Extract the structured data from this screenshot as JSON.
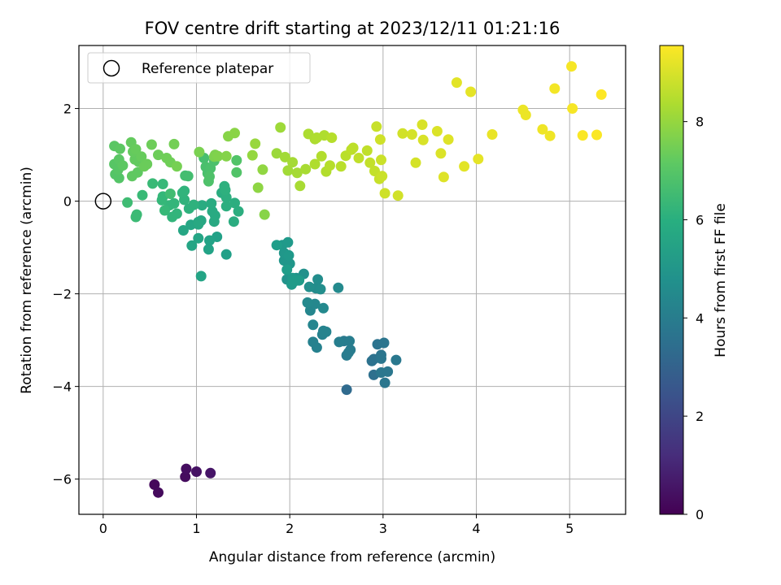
{
  "chart_data": {
    "type": "scatter",
    "title": "FOV centre drift starting at 2023/12/11 01:21:16",
    "xlabel": "Angular distance from reference (arcmin)",
    "ylabel": "Rotation from reference (arcmin)",
    "xlim": [
      -0.26,
      5.6
    ],
    "ylim": [
      -6.76,
      3.36
    ],
    "xticks": [
      0,
      1,
      2,
      3,
      4,
      5
    ],
    "xtick_labels": [
      "0",
      "1",
      "2",
      "3",
      "4",
      "5"
    ],
    "yticks": [
      -6,
      -4,
      -2,
      0,
      2
    ],
    "ytick_labels": [
      "−6",
      "−4",
      "−2",
      "0",
      "2"
    ],
    "grid": true,
    "legend": {
      "placement": "top-left",
      "entries": [
        "Reference platepar"
      ]
    },
    "reference_point": {
      "x": 0,
      "y": 0,
      "marker": "open-circle"
    },
    "colorbar": {
      "label": "Hours from first FF file",
      "colormap": "viridis",
      "range": [
        0,
        9.55
      ],
      "ticks": [
        0,
        2,
        4,
        6,
        8
      ],
      "tick_labels": [
        "0",
        "2",
        "4",
        "6",
        "8"
      ]
    },
    "series": [
      {
        "points": [
          [
            0.55,
            -6.12,
            0.2
          ],
          [
            0.59,
            -6.29,
            0.25
          ],
          [
            0.88,
            -5.95,
            0.3
          ],
          [
            0.89,
            -5.78,
            0.35
          ],
          [
            1.0,
            -5.84,
            0.45
          ],
          [
            1.15,
            -5.87,
            0.55
          ],
          [
            2.61,
            -4.07,
            3.3
          ],
          [
            2.9,
            -3.75,
            3.5
          ],
          [
            2.88,
            -3.45,
            3.6
          ],
          [
            2.9,
            -3.41,
            3.6
          ],
          [
            2.94,
            -3.09,
            3.65
          ],
          [
            3.01,
            -3.06,
            3.7
          ],
          [
            2.98,
            -3.32,
            3.7
          ],
          [
            2.98,
            -3.4,
            3.75
          ],
          [
            3.02,
            -3.92,
            3.75
          ],
          [
            2.98,
            -3.7,
            3.8
          ],
          [
            3.05,
            -3.68,
            3.8
          ],
          [
            3.14,
            -3.43,
            3.85
          ],
          [
            2.58,
            -3.02,
            3.9
          ],
          [
            2.61,
            -3.33,
            3.95
          ],
          [
            2.63,
            -3.27,
            4.0
          ],
          [
            2.65,
            -3.21,
            4.0
          ],
          [
            2.64,
            -3.02,
            4.05
          ],
          [
            2.53,
            -3.04,
            4.1
          ],
          [
            2.25,
            -3.04,
            4.2
          ],
          [
            2.29,
            -3.16,
            4.2
          ],
          [
            2.35,
            -2.88,
            4.25
          ],
          [
            2.39,
            -2.82,
            4.3
          ],
          [
            2.36,
            -2.8,
            4.3
          ],
          [
            2.25,
            -2.67,
            4.35
          ],
          [
            2.22,
            -2.36,
            4.4
          ],
          [
            2.27,
            -2.22,
            4.45
          ],
          [
            2.19,
            -2.19,
            4.5
          ],
          [
            2.36,
            -2.31,
            4.5
          ],
          [
            2.52,
            -1.87,
            4.55
          ],
          [
            2.28,
            -1.88,
            4.6
          ],
          [
            2.3,
            -1.69,
            4.65
          ],
          [
            2.33,
            -1.9,
            4.7
          ],
          [
            2.21,
            -1.85,
            4.75
          ],
          [
            2.15,
            -1.57,
            4.8
          ],
          [
            2.07,
            -1.66,
            4.85
          ],
          [
            1.97,
            -1.69,
            4.9
          ],
          [
            1.94,
            -1.28,
            5.0
          ],
          [
            2.0,
            -1.35,
            5.0
          ],
          [
            1.94,
            -1.12,
            5.05
          ],
          [
            1.99,
            -1.17,
            5.1
          ],
          [
            1.92,
            -0.95,
            5.1
          ],
          [
            1.98,
            -0.89,
            5.15
          ],
          [
            2.03,
            -1.66,
            5.1
          ],
          [
            2.02,
            -1.8,
            5.15
          ],
          [
            2.05,
            -1.73,
            5.2
          ],
          [
            2.1,
            -1.71,
            5.2
          ],
          [
            1.97,
            -1.48,
            5.25
          ],
          [
            1.86,
            -0.95,
            5.3
          ],
          [
            1.32,
            -1.15,
            5.4
          ],
          [
            1.22,
            -0.77,
            5.45
          ],
          [
            1.14,
            -0.85,
            5.5
          ],
          [
            1.13,
            -1.04,
            5.5
          ],
          [
            1.05,
            -1.62,
            5.55
          ],
          [
            1.02,
            -0.8,
            5.6
          ],
          [
            0.95,
            -0.96,
            5.6
          ],
          [
            0.86,
            -0.63,
            5.65
          ],
          [
            0.94,
            -0.51,
            5.65
          ],
          [
            1.02,
            -0.5,
            5.7
          ],
          [
            1.05,
            -0.42,
            5.7
          ],
          [
            1.02,
            -0.45,
            5.75
          ],
          [
            1.19,
            -0.44,
            5.75
          ],
          [
            1.2,
            -0.31,
            5.8
          ],
          [
            1.17,
            -0.22,
            5.8
          ],
          [
            1.06,
            -0.09,
            5.85
          ],
          [
            1.16,
            -0.05,
            5.85
          ],
          [
            1.27,
            0.18,
            5.9
          ],
          [
            1.4,
            -0.44,
            5.9
          ],
          [
            1.41,
            -0.04,
            5.95
          ],
          [
            1.45,
            -0.22,
            5.95
          ],
          [
            1.32,
            -0.11,
            6.0
          ],
          [
            1.32,
            0.08,
            6.0
          ],
          [
            1.3,
            0.32,
            6.05
          ],
          [
            1.31,
            0.24,
            6.05
          ],
          [
            0.92,
            -0.16,
            6.1
          ],
          [
            0.97,
            -0.08,
            6.1
          ],
          [
            0.87,
            0.03,
            6.15
          ],
          [
            0.85,
            0.18,
            6.2
          ],
          [
            0.87,
            0.22,
            6.2
          ],
          [
            0.74,
            -0.34,
            6.25
          ],
          [
            0.79,
            -0.27,
            6.25
          ],
          [
            0.76,
            -0.05,
            6.3
          ],
          [
            0.71,
            -0.09,
            6.3
          ],
          [
            0.64,
            0.1,
            6.35
          ],
          [
            0.63,
            0.02,
            6.35
          ],
          [
            0.66,
            -0.2,
            6.4
          ],
          [
            0.64,
            0.37,
            6.4
          ],
          [
            0.53,
            0.38,
            6.45
          ],
          [
            0.42,
            0.13,
            6.45
          ],
          [
            0.35,
            -0.34,
            6.5
          ],
          [
            0.36,
            -0.29,
            6.5
          ],
          [
            0.26,
            -0.03,
            6.55
          ],
          [
            0.72,
            0.16,
            6.6
          ],
          [
            0.88,
            0.55,
            6.65
          ],
          [
            0.91,
            0.54,
            6.65
          ],
          [
            1.08,
            0.93,
            6.7
          ],
          [
            1.1,
            0.74,
            6.75
          ],
          [
            1.12,
            0.6,
            6.75
          ],
          [
            1.15,
            0.71,
            6.8
          ],
          [
            1.19,
            0.87,
            6.8
          ],
          [
            1.14,
            0.53,
            6.85
          ],
          [
            1.13,
            0.43,
            6.85
          ],
          [
            1.43,
            0.62,
            6.9
          ],
          [
            1.43,
            0.88,
            6.9
          ],
          [
            0.17,
            0.5,
            6.95
          ],
          [
            0.13,
            0.58,
            6.95
          ],
          [
            0.12,
            0.8,
            7.0
          ],
          [
            0.16,
            0.68,
            7.0
          ],
          [
            0.17,
            0.9,
            7.05
          ],
          [
            0.12,
            1.19,
            7.05
          ],
          [
            0.18,
            1.13,
            7.1
          ],
          [
            0.21,
            0.77,
            7.1
          ],
          [
            0.31,
            0.54,
            7.15
          ],
          [
            0.37,
            0.62,
            7.15
          ],
          [
            0.38,
            0.85,
            7.2
          ],
          [
            0.34,
            0.9,
            7.2
          ],
          [
            0.32,
            1.07,
            7.25
          ],
          [
            0.3,
            1.27,
            7.25
          ],
          [
            0.35,
            1.12,
            7.3
          ],
          [
            0.41,
            0.96,
            7.3
          ],
          [
            0.44,
            0.75,
            7.35
          ],
          [
            0.47,
            0.8,
            7.35
          ],
          [
            0.52,
            1.22,
            7.4
          ],
          [
            0.59,
            1.0,
            7.4
          ],
          [
            0.68,
            0.93,
            7.45
          ],
          [
            0.72,
            0.84,
            7.45
          ],
          [
            0.76,
            1.23,
            7.5
          ],
          [
            0.79,
            0.75,
            7.55
          ],
          [
            1.03,
            1.06,
            7.6
          ],
          [
            1.19,
            0.96,
            7.65
          ],
          [
            1.2,
            1.0,
            7.65
          ],
          [
            1.23,
            0.97,
            7.7
          ],
          [
            1.32,
            0.97,
            7.75
          ],
          [
            1.34,
            1.4,
            7.8
          ],
          [
            1.41,
            1.47,
            7.85
          ],
          [
            1.66,
            0.29,
            7.9
          ],
          [
            1.71,
            0.68,
            7.95
          ],
          [
            1.6,
            0.99,
            8.0
          ],
          [
            1.63,
            1.24,
            8.05
          ],
          [
            1.73,
            -0.29,
            7.8
          ],
          [
            1.86,
            1.03,
            8.1
          ],
          [
            1.9,
            1.59,
            8.15
          ],
          [
            1.95,
            0.95,
            8.2
          ],
          [
            1.98,
            0.66,
            8.2
          ],
          [
            2.03,
            0.84,
            8.25
          ],
          [
            2.08,
            0.61,
            8.25
          ],
          [
            2.11,
            0.33,
            8.3
          ],
          [
            2.17,
            0.69,
            8.3
          ],
          [
            2.2,
            1.45,
            8.35
          ],
          [
            2.27,
            1.34,
            8.35
          ],
          [
            2.29,
            1.37,
            8.4
          ],
          [
            2.37,
            1.42,
            8.4
          ],
          [
            2.27,
            0.8,
            8.4
          ],
          [
            2.34,
            0.97,
            8.45
          ],
          [
            2.39,
            0.64,
            8.45
          ],
          [
            2.43,
            0.77,
            8.5
          ],
          [
            2.45,
            1.37,
            8.5
          ],
          [
            2.55,
            0.75,
            8.55
          ],
          [
            2.6,
            0.98,
            8.55
          ],
          [
            2.66,
            1.11,
            8.6
          ],
          [
            2.68,
            1.15,
            8.6
          ],
          [
            2.74,
            0.93,
            8.65
          ],
          [
            2.83,
            1.09,
            8.65
          ],
          [
            2.86,
            0.83,
            8.7
          ],
          [
            2.91,
            0.65,
            8.7
          ],
          [
            2.93,
            1.61,
            8.75
          ],
          [
            2.96,
            0.48,
            8.75
          ],
          [
            2.99,
            0.54,
            8.8
          ],
          [
            2.98,
            0.89,
            8.8
          ],
          [
            2.97,
            1.33,
            8.85
          ],
          [
            3.02,
            0.17,
            8.85
          ],
          [
            3.16,
            0.12,
            8.9
          ],
          [
            3.21,
            1.46,
            8.9
          ],
          [
            3.31,
            1.44,
            8.95
          ],
          [
            3.35,
            0.83,
            8.95
          ],
          [
            3.42,
            1.65,
            9.0
          ],
          [
            3.43,
            1.32,
            9.0
          ],
          [
            3.58,
            1.51,
            9.05
          ],
          [
            3.62,
            1.03,
            9.05
          ],
          [
            3.65,
            0.52,
            9.1
          ],
          [
            3.7,
            1.33,
            9.1
          ],
          [
            3.79,
            2.56,
            9.15
          ],
          [
            3.87,
            0.75,
            9.15
          ],
          [
            3.94,
            2.36,
            9.2
          ],
          [
            4.02,
            0.91,
            9.2
          ],
          [
            4.17,
            1.44,
            9.25
          ],
          [
            4.5,
            1.97,
            9.3
          ],
          [
            4.53,
            1.86,
            9.3
          ],
          [
            4.71,
            1.55,
            9.35
          ],
          [
            4.79,
            1.41,
            9.35
          ],
          [
            4.84,
            2.43,
            9.4
          ],
          [
            5.02,
            2.91,
            9.45
          ],
          [
            5.03,
            2.0,
            9.45
          ],
          [
            5.14,
            1.42,
            9.5
          ],
          [
            5.29,
            1.43,
            9.5
          ],
          [
            5.34,
            2.3,
            9.55
          ]
        ]
      }
    ]
  }
}
